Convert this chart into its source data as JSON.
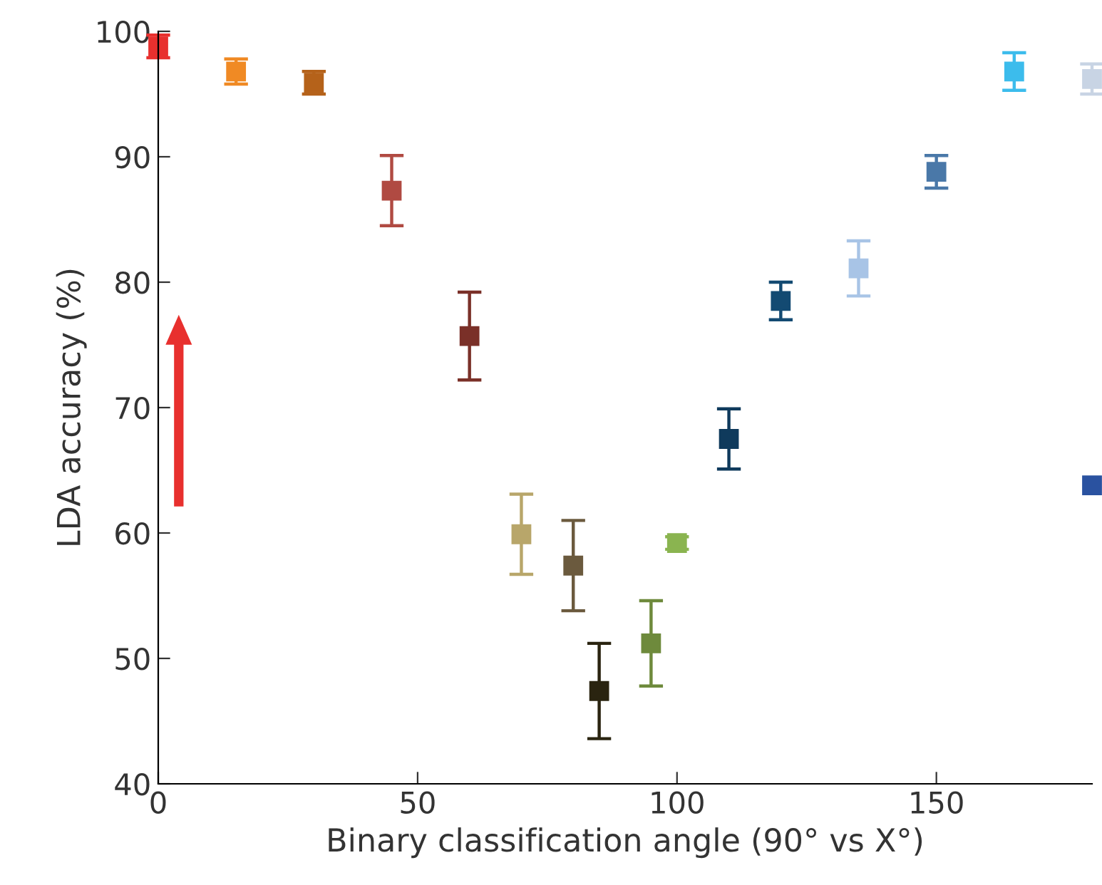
{
  "chart_data": {
    "type": "scatter",
    "xlabel": "Binary classification angle (90° vs X°)",
    "ylabel": "LDA accuracy (%)",
    "x": [
      0,
      15,
      30,
      45,
      60,
      70,
      80,
      85,
      95,
      100,
      110,
      120,
      135,
      150,
      165,
      180,
      180
    ],
    "values": [
      98.8,
      96.8,
      95.9,
      87.3,
      75.7,
      59.9,
      57.4,
      47.4,
      51.2,
      59.2,
      67.5,
      78.5,
      81.1,
      88.8,
      96.8,
      96.2,
      63.8
    ],
    "errors": [
      0.9,
      1.0,
      0.9,
      2.8,
      3.5,
      3.2,
      3.6,
      3.8,
      3.4,
      0.5,
      2.4,
      1.5,
      2.2,
      1.3,
      1.5,
      1.2,
      null
    ],
    "colors": [
      "#e8302e",
      "#f08a24",
      "#b5621a",
      "#b04a42",
      "#7a3028",
      "#b8a66a",
      "#6b5a3e",
      "#2a2410",
      "#6e8a3c",
      "#8ab450",
      "#0f3a5c",
      "#134a72",
      "#a8c4e6",
      "#4a78a8",
      "#3cbcec",
      "#c8d4e4",
      "#2a52a0"
    ],
    "marker": "square",
    "xlim": [
      0,
      180
    ],
    "ylim": [
      40,
      100
    ],
    "xticks": [
      0,
      50,
      100,
      150
    ],
    "yticks": [
      40,
      50,
      60,
      70,
      80,
      90,
      100
    ],
    "grid": false
  }
}
